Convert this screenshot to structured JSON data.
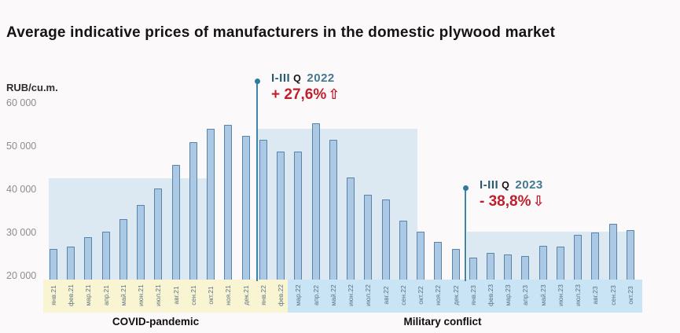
{
  "title": "Average indicative prices of manufacturers in the domestic plywood market",
  "y_axis": {
    "unit_label": "RUB/cu.m.",
    "ticks": [
      {
        "label": "60 000",
        "value": 60000
      },
      {
        "label": "50 000",
        "value": 50000
      },
      {
        "label": "40 000",
        "value": 40000
      },
      {
        "label": "30 000",
        "value": 30000
      },
      {
        "label": "20 000",
        "value": 20000
      }
    ]
  },
  "chart_data": {
    "type": "bar",
    "title": "Average indicative prices of manufacturers in the domestic plywood market",
    "xlabel": "",
    "ylabel": "RUB/cu.m.",
    "ylim": [
      19000,
      62000
    ],
    "grid": false,
    "legend": null,
    "categories": [
      "янв.21",
      "фев.21",
      "мар.21",
      "апр.21",
      "май.21",
      "июн.21",
      "июл.21",
      "авг.21",
      "сен.21",
      "окт.21",
      "ноя.21",
      "дек.21",
      "янв.22",
      "фев.22",
      "мар.22",
      "апр.22",
      "май.22",
      "июн.22",
      "июл.22",
      "авг.22",
      "сен.22",
      "окт.22",
      "ноя.22",
      "дек.22",
      "янв.23",
      "фев.23",
      "мар.23",
      "апр.23",
      "май.23",
      "июн.23",
      "июл.23",
      "авг.23",
      "сен.23",
      "окт.23"
    ],
    "values": [
      26400,
      26900,
      29000,
      30400,
      33300,
      36500,
      40300,
      45800,
      51000,
      54100,
      55100,
      52500,
      51500,
      48800,
      48800,
      55300,
      51500,
      42800,
      38900,
      37800,
      32800,
      30300,
      27900,
      26300,
      24300,
      25500,
      25100,
      24700,
      27100,
      26900,
      29700,
      30100,
      32100,
      30700
    ],
    "highlight_bands": [
      {
        "name": "level-2021",
        "from": "янв.21",
        "to": "окт.21",
        "top_value": 42700
      },
      {
        "name": "level-I-III-Q-2022",
        "from": "янв.22",
        "to": "сен.22",
        "top_value": 54150
      },
      {
        "name": "level-I-III-Q-2023",
        "from": "янв.23",
        "to": "сен.23",
        "top_value": 30250
      }
    ],
    "annotations": [
      {
        "period": "I-III",
        "q": "Q",
        "year": "2022",
        "change": "+ 27,6%",
        "arrow": "up",
        "arrow_glyph": "⇧",
        "anchor_month": "янв.22"
      },
      {
        "period": "I-III",
        "q": "Q",
        "year": "2023",
        "change": "- 38,8%",
        "arrow": "down",
        "arrow_glyph": "⇩",
        "anchor_month": "янв.23"
      }
    ],
    "period_bands": [
      {
        "label": "COVID-pandemic",
        "from": "янв.21",
        "to": "фев.22",
        "color": "#f9f5d2"
      },
      {
        "label": "Military conflict",
        "from": "мар.22",
        "to": "окт.23",
        "color": "#c9e4f4"
      }
    ]
  },
  "colors": {
    "bar_fill": "#abc9e4",
    "bar_border": "#5784a8",
    "highlight_band": "#dde9f2",
    "annotation_teal": "#2e7aa0",
    "annotation_year": "#44798f",
    "annotation_red": "#bf1f2c",
    "covid_band": "#f9f5d2",
    "conflict_band": "#c9e4f4",
    "month_label": "#5c7284",
    "ytick": "#8d8d8d"
  }
}
